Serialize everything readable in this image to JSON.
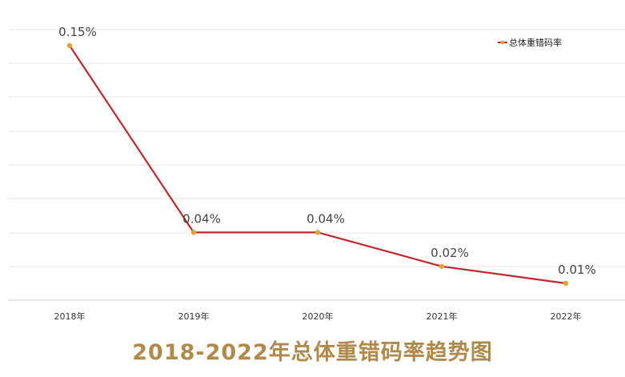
{
  "chart_data": {
    "type": "line",
    "title": "2018-2022年总体重错码率趋势图",
    "categories": [
      "2018年",
      "2019年",
      "2020年",
      "2021年",
      "2022年"
    ],
    "series": [
      {
        "name": "总体重错码率",
        "values": [
          0.15,
          0.04,
          0.04,
          0.02,
          0.01
        ],
        "labels": [
          "0.15%",
          "0.04%",
          "0.04%",
          "0.02%",
          "0.01%"
        ],
        "line_color": "#c0282e",
        "marker_color": "#e3a33a"
      }
    ],
    "ylim": [
      -0.0,
      0.16
    ],
    "grid": true,
    "legend": "top-right"
  }
}
